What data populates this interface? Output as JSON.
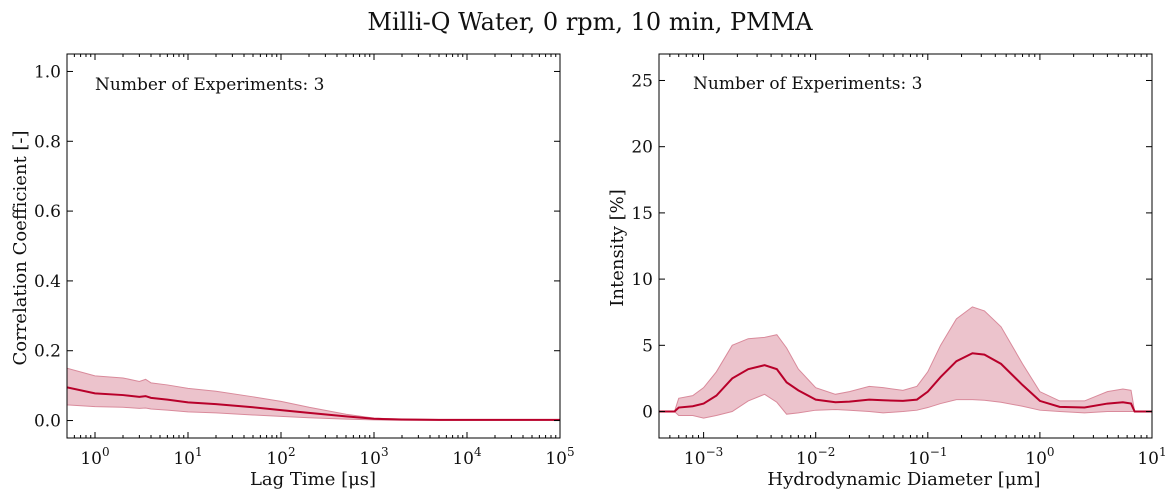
{
  "figure": {
    "title": "Milli-Q Water, 0 rpm, 10 min, PMMA"
  },
  "colors": {
    "line": "#b8002a",
    "band": "#e4a9b6",
    "band_edge": "#d98a9b"
  },
  "chart_data": [
    {
      "type": "line",
      "panel": "left",
      "xlabel": "Lag Time [μs]",
      "ylabel": "Correlation Coefficient [-]",
      "xscale": "log",
      "xlim": [
        0.5,
        100000
      ],
      "ylim": [
        -0.05,
        1.05
      ],
      "grid": false,
      "annotation": "Number of Experiments: 3",
      "x_tick_labels": [
        "10^0",
        "10^1",
        "10^2",
        "10^3",
        "10^4",
        "10^5"
      ],
      "y_tick_labels": [
        "0.0",
        "0.2",
        "0.4",
        "0.6",
        "0.8",
        "1.0"
      ],
      "x": [
        0.5,
        1,
        2,
        3,
        3.5,
        4,
        6,
        10,
        20,
        50,
        100,
        200,
        500,
        1000,
        2000,
        5000,
        10000,
        100000
      ],
      "mean": [
        0.095,
        0.078,
        0.073,
        0.068,
        0.07,
        0.065,
        0.06,
        0.052,
        0.047,
        0.038,
        0.03,
        0.022,
        0.012,
        0.005,
        0.003,
        0.002,
        0.002,
        0.002
      ],
      "upper": [
        0.15,
        0.128,
        0.122,
        0.112,
        0.118,
        0.108,
        0.102,
        0.092,
        0.084,
        0.068,
        0.055,
        0.038,
        0.018,
        0.007,
        0.004,
        0.003,
        0.003,
        0.003
      ],
      "lower": [
        0.045,
        0.04,
        0.038,
        0.035,
        0.036,
        0.033,
        0.03,
        0.025,
        0.022,
        0.016,
        0.012,
        0.008,
        0.004,
        0.002,
        0.001,
        0.001,
        0.001,
        0.001
      ]
    },
    {
      "type": "line",
      "panel": "right",
      "xlabel": "Hydrodynamic Diameter [μm]",
      "ylabel": "Intensity [%]",
      "xscale": "log",
      "xlim": [
        0.0004,
        10
      ],
      "ylim": [
        -2,
        27
      ],
      "grid": false,
      "annotation": "Number of Experiments: 3",
      "x_tick_labels": [
        "10^-3",
        "10^-2",
        "10^-1",
        "10^0",
        "10^1"
      ],
      "y_tick_labels": [
        "0",
        "5",
        "10",
        "15",
        "20",
        "25"
      ],
      "x": [
        0.0004,
        0.00055,
        0.0006,
        0.0008,
        0.001,
        0.0013,
        0.0018,
        0.0025,
        0.0035,
        0.0045,
        0.0055,
        0.007,
        0.01,
        0.015,
        0.02,
        0.03,
        0.04,
        0.06,
        0.08,
        0.1,
        0.13,
        0.18,
        0.25,
        0.32,
        0.45,
        0.7,
        1.0,
        1.5,
        2.5,
        4,
        5.5,
        6.5,
        7,
        10
      ],
      "mean": [
        0,
        0,
        0.3,
        0.4,
        0.6,
        1.2,
        2.5,
        3.2,
        3.5,
        3.2,
        2.2,
        1.6,
        0.9,
        0.7,
        0.75,
        0.9,
        0.85,
        0.8,
        0.9,
        1.5,
        2.6,
        3.8,
        4.4,
        4.3,
        3.6,
        2.0,
        0.8,
        0.35,
        0.3,
        0.6,
        0.7,
        0.6,
        0,
        0
      ],
      "upper": [
        0,
        0,
        1.0,
        1.2,
        1.8,
        3.0,
        5.0,
        5.5,
        5.6,
        5.8,
        4.8,
        3.2,
        1.8,
        1.3,
        1.5,
        1.9,
        1.8,
        1.6,
        1.9,
        3.0,
        5.0,
        7.0,
        7.9,
        7.6,
        6.4,
        3.6,
        1.5,
        0.8,
        0.8,
        1.5,
        1.7,
        1.6,
        0,
        0
      ],
      "lower": [
        0,
        0,
        -0.3,
        -0.3,
        -0.5,
        -0.3,
        0.0,
        0.8,
        1.3,
        0.7,
        -0.2,
        -0.1,
        0.1,
        0.15,
        0.1,
        0.0,
        -0.1,
        0.0,
        0.1,
        0.3,
        0.6,
        0.9,
        0.9,
        0.85,
        0.7,
        0.4,
        0.1,
        0.0,
        -0.1,
        0.0,
        0.0,
        0.0,
        0,
        0
      ]
    }
  ]
}
